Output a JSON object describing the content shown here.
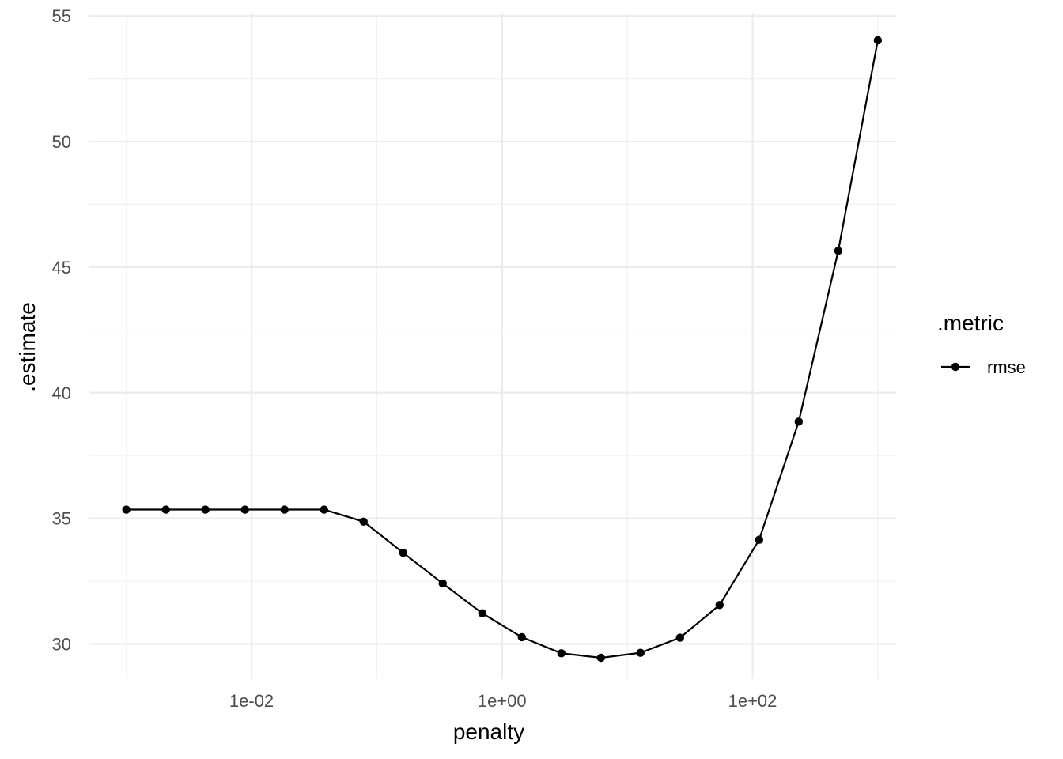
{
  "chart_data": {
    "type": "line",
    "x_scale": "log10",
    "xlabel": "penalty",
    "ylabel": ".estimate",
    "x_ticks": [
      0.01,
      1,
      100
    ],
    "x_tick_labels": [
      "1e-02",
      "1e+00",
      "1e+02"
    ],
    "y_ticks": [
      30,
      35,
      40,
      45,
      50,
      55
    ],
    "y_tick_labels": [
      "30",
      "35",
      "40",
      "45",
      "50",
      "55"
    ],
    "xlim": [
      0.0005,
      1400
    ],
    "ylim": [
      28.6,
      55.1
    ],
    "grid": true,
    "legend": {
      "title": ".metric",
      "position": "right"
    },
    "series": [
      {
        "name": "rmse",
        "color": "#000000",
        "x": [
          0.001,
          0.0020691,
          0.0042813,
          0.0088587,
          0.01833,
          0.037927,
          0.078476,
          0.16238,
          0.33598,
          0.69519,
          1.4384,
          2.9764,
          6.1585,
          12.743,
          26.367,
          54.556,
          112.88,
          233.57,
          483.29,
          1000
        ],
        "values": [
          35.35,
          35.35,
          35.35,
          35.35,
          35.35,
          35.35,
          34.87,
          33.63,
          32.41,
          31.22,
          30.27,
          29.63,
          29.45,
          29.65,
          30.25,
          31.55,
          34.15,
          38.85,
          45.65,
          54.03
        ]
      }
    ]
  }
}
